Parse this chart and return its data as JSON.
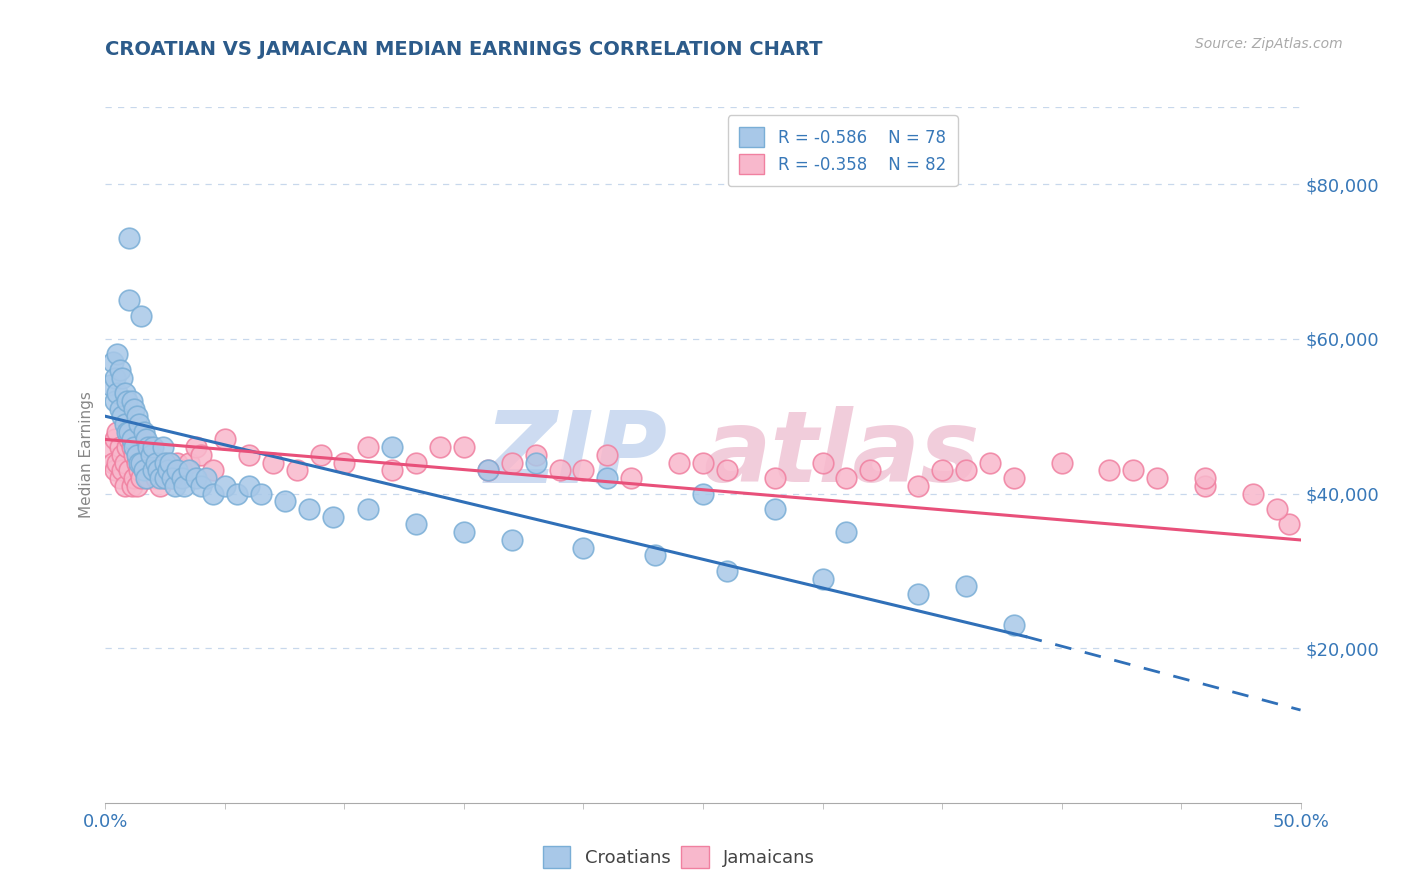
{
  "title": "CROATIAN VS JAMAICAN MEDIAN EARNINGS CORRELATION CHART",
  "source_text": "Source: ZipAtlas.com",
  "ylabel": "Median Earnings",
  "xlim": [
    0.0,
    0.5
  ],
  "ylim": [
    0,
    90000
  ],
  "yticks": [
    20000,
    40000,
    60000,
    80000
  ],
  "ytick_labels": [
    "$20,000",
    "$40,000",
    "$60,000",
    "$80,000"
  ],
  "legend_r1": "R = -0.586",
  "legend_n1": "N = 78",
  "legend_r2": "R = -0.358",
  "legend_n2": "N = 82",
  "croatian_color": "#a8c8e8",
  "jamaican_color": "#f8b8cc",
  "croatian_edge_color": "#7aaed6",
  "jamaican_edge_color": "#f080a0",
  "croatian_line_color": "#3070b8",
  "jamaican_line_color": "#e8507a",
  "title_color": "#2c5b8a",
  "axis_color": "#3878b8",
  "background_color": "#ffffff",
  "grid_color": "#c8d8ec",
  "watermark_zip_color": "#c8d8f0",
  "watermark_atlas_color": "#f0c8d8",
  "blue_line_x0": 0.0,
  "blue_line_y0": 50000,
  "blue_line_x1": 0.385,
  "blue_line_y1": 21500,
  "blue_line_x2": 0.5,
  "blue_line_y2": 12000,
  "pink_line_x0": 0.0,
  "pink_line_y0": 47000,
  "pink_line_x1": 0.5,
  "pink_line_y1": 34000,
  "croatian_x": [
    0.002,
    0.003,
    0.004,
    0.004,
    0.005,
    0.005,
    0.006,
    0.006,
    0.007,
    0.007,
    0.008,
    0.008,
    0.009,
    0.009,
    0.01,
    0.01,
    0.01,
    0.011,
    0.011,
    0.012,
    0.012,
    0.013,
    0.013,
    0.014,
    0.014,
    0.015,
    0.015,
    0.016,
    0.016,
    0.017,
    0.017,
    0.018,
    0.019,
    0.02,
    0.02,
    0.021,
    0.022,
    0.023,
    0.024,
    0.025,
    0.025,
    0.026,
    0.027,
    0.028,
    0.029,
    0.03,
    0.032,
    0.033,
    0.035,
    0.038,
    0.04,
    0.042,
    0.045,
    0.05,
    0.055,
    0.06,
    0.065,
    0.075,
    0.085,
    0.095,
    0.11,
    0.13,
    0.15,
    0.17,
    0.2,
    0.23,
    0.26,
    0.3,
    0.34,
    0.38,
    0.12,
    0.16,
    0.21,
    0.25,
    0.18,
    0.28,
    0.31,
    0.36
  ],
  "croatian_y": [
    54000,
    57000,
    55000,
    52000,
    58000,
    53000,
    56000,
    51000,
    55000,
    50000,
    53000,
    49000,
    52000,
    48000,
    73000,
    65000,
    48000,
    52000,
    47000,
    51000,
    46000,
    50000,
    45000,
    49000,
    44000,
    63000,
    44000,
    48000,
    43000,
    47000,
    42000,
    46000,
    45000,
    46000,
    43000,
    44000,
    43000,
    42000,
    46000,
    44000,
    42000,
    43000,
    44000,
    42000,
    41000,
    43000,
    42000,
    41000,
    43000,
    42000,
    41000,
    42000,
    40000,
    41000,
    40000,
    41000,
    40000,
    39000,
    38000,
    37000,
    38000,
    36000,
    35000,
    34000,
    33000,
    32000,
    30000,
    29000,
    27000,
    23000,
    46000,
    43000,
    42000,
    40000,
    44000,
    38000,
    35000,
    28000
  ],
  "jamaican_x": [
    0.002,
    0.003,
    0.004,
    0.004,
    0.005,
    0.005,
    0.006,
    0.006,
    0.007,
    0.007,
    0.008,
    0.008,
    0.009,
    0.01,
    0.01,
    0.011,
    0.011,
    0.012,
    0.012,
    0.013,
    0.013,
    0.014,
    0.015,
    0.015,
    0.016,
    0.017,
    0.018,
    0.019,
    0.02,
    0.021,
    0.022,
    0.023,
    0.024,
    0.025,
    0.026,
    0.027,
    0.028,
    0.03,
    0.032,
    0.035,
    0.038,
    0.04,
    0.045,
    0.05,
    0.06,
    0.07,
    0.08,
    0.09,
    0.1,
    0.11,
    0.12,
    0.13,
    0.15,
    0.16,
    0.18,
    0.2,
    0.22,
    0.24,
    0.26,
    0.28,
    0.3,
    0.32,
    0.34,
    0.36,
    0.38,
    0.4,
    0.42,
    0.44,
    0.46,
    0.48,
    0.495,
    0.14,
    0.17,
    0.19,
    0.21,
    0.25,
    0.31,
    0.35,
    0.37,
    0.43,
    0.46,
    0.49
  ],
  "jamaican_y": [
    46000,
    44000,
    47000,
    43000,
    48000,
    44000,
    46000,
    42000,
    45000,
    43000,
    44000,
    41000,
    46000,
    47000,
    43000,
    46000,
    41000,
    45000,
    42000,
    44000,
    41000,
    43000,
    47000,
    42000,
    44000,
    43000,
    42000,
    44000,
    43000,
    42000,
    44000,
    41000,
    43000,
    42000,
    44000,
    43000,
    42000,
    44000,
    43000,
    44000,
    46000,
    45000,
    43000,
    47000,
    45000,
    44000,
    43000,
    45000,
    44000,
    46000,
    43000,
    44000,
    46000,
    43000,
    45000,
    43000,
    42000,
    44000,
    43000,
    42000,
    44000,
    43000,
    41000,
    43000,
    42000,
    44000,
    43000,
    42000,
    41000,
    40000,
    36000,
    46000,
    44000,
    43000,
    45000,
    44000,
    42000,
    43000,
    44000,
    43000,
    42000,
    38000
  ]
}
